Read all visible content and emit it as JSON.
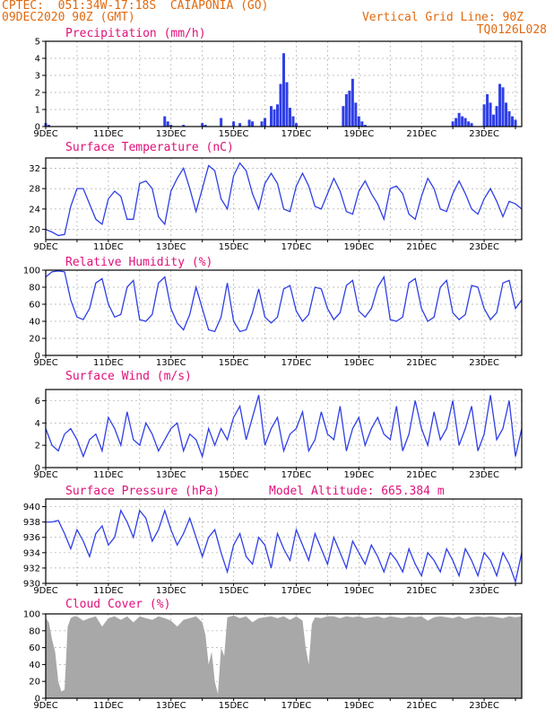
{
  "header": {
    "line1_left": "CPTEC:  051:34W-17:18S  CAIAPONIA (GO)",
    "line2_left": "09DEC2020 90Z (GMT)",
    "line2_right": "Vertical Grid Line: 90Z",
    "line3_right": "TQ0126L028"
  },
  "colors": {
    "series_blue": "#2f3fe6",
    "title_pink": "#e0107a",
    "header_orange": "#e06a10",
    "cloud_gray": "#a8a8a8"
  },
  "x_tick_labels": [
    "9DEC",
    "11DEC",
    "13DEC",
    "15DEC",
    "17DEC",
    "19DEC",
    "21DEC",
    "23DEC"
  ],
  "chart_data": [
    {
      "type": "bar",
      "title": "Precipitation (mm/h)",
      "ylim": [
        0,
        5
      ],
      "yticks": [
        0,
        1,
        2,
        3,
        4,
        5
      ],
      "x_range_days": [
        9,
        24.2
      ],
      "x": [
        9.0,
        9.1,
        12.8,
        12.9,
        13.0,
        13.4,
        14.0,
        14.1,
        14.6,
        15.0,
        15.2,
        15.5,
        15.6,
        15.9,
        16.0,
        16.2,
        16.3,
        16.4,
        16.5,
        16.6,
        16.7,
        16.8,
        16.9,
        17.0,
        18.5,
        18.6,
        18.7,
        18.8,
        18.9,
        19.0,
        19.1,
        19.2,
        22.0,
        22.1,
        22.2,
        22.3,
        22.4,
        22.5,
        22.6,
        23.0,
        23.1,
        23.2,
        23.3,
        23.4,
        23.5,
        23.6,
        23.7,
        23.8,
        23.9,
        24.0
      ],
      "values": [
        0.2,
        0.1,
        0.6,
        0.3,
        0.1,
        0.1,
        0.2,
        0.1,
        0.5,
        0.3,
        0.2,
        0.4,
        0.3,
        0.3,
        0.5,
        1.2,
        1.0,
        1.3,
        2.5,
        4.3,
        2.6,
        1.1,
        0.6,
        0.2,
        1.2,
        1.9,
        2.1,
        2.8,
        1.4,
        0.6,
        0.3,
        0.1,
        0.3,
        0.5,
        0.8,
        0.6,
        0.5,
        0.3,
        0.2,
        1.3,
        1.9,
        1.4,
        0.7,
        1.2,
        2.5,
        2.3,
        1.4,
        0.9,
        0.6,
        0.4
      ]
    },
    {
      "type": "line",
      "title": "Surface Temperature (nC)",
      "ylim": [
        18,
        34
      ],
      "yticks": [
        20,
        24,
        28,
        32
      ],
      "x": [
        9.0,
        9.2,
        9.4,
        9.6,
        9.8,
        10.0,
        10.2,
        10.4,
        10.6,
        10.8,
        11.0,
        11.2,
        11.4,
        11.6,
        11.8,
        12.0,
        12.2,
        12.4,
        12.6,
        12.8,
        13.0,
        13.2,
        13.4,
        13.6,
        13.8,
        14.0,
        14.2,
        14.4,
        14.6,
        14.8,
        15.0,
        15.2,
        15.4,
        15.6,
        15.8,
        16.0,
        16.2,
        16.4,
        16.6,
        16.8,
        17.0,
        17.2,
        17.4,
        17.6,
        17.8,
        18.0,
        18.2,
        18.4,
        18.6,
        18.8,
        19.0,
        19.2,
        19.4,
        19.6,
        19.8,
        20.0,
        20.2,
        20.4,
        20.6,
        20.8,
        21.0,
        21.2,
        21.4,
        21.6,
        21.8,
        22.0,
        22.2,
        22.4,
        22.6,
        22.8,
        23.0,
        23.2,
        23.4,
        23.6,
        23.8,
        24.0,
        24.2
      ],
      "values": [
        20,
        19.5,
        18.8,
        19.0,
        24.5,
        28.0,
        28.0,
        25.0,
        22.0,
        21.0,
        26.0,
        27.5,
        26.5,
        22.0,
        22.0,
        29.0,
        29.5,
        28.0,
        22.5,
        21.0,
        27.5,
        30.0,
        32.0,
        28.0,
        23.5,
        28.0,
        32.5,
        31.5,
        26.0,
        24.0,
        30.5,
        33.0,
        31.5,
        27.0,
        24.0,
        29.0,
        31.0,
        29.0,
        24.0,
        23.5,
        28.5,
        31.0,
        28.5,
        24.5,
        24.0,
        27.0,
        30.0,
        27.5,
        23.5,
        23.0,
        27.5,
        29.5,
        27.0,
        25.0,
        22.0,
        28.0,
        28.5,
        27.0,
        23.0,
        22.0,
        26.5,
        30.0,
        28.0,
        24.0,
        23.5,
        27.0,
        29.5,
        27.0,
        24.0,
        23.0,
        26.0,
        28.0,
        25.5,
        22.5,
        25.5,
        25.0,
        24.0
      ]
    },
    {
      "type": "line",
      "title": "Relative Humidity (%)",
      "ylim": [
        0,
        100
      ],
      "yticks": [
        0,
        20,
        40,
        60,
        80,
        100
      ],
      "x": [
        9.0,
        9.2,
        9.4,
        9.6,
        9.8,
        10.0,
        10.2,
        10.4,
        10.6,
        10.8,
        11.0,
        11.2,
        11.4,
        11.6,
        11.8,
        12.0,
        12.2,
        12.4,
        12.6,
        12.8,
        13.0,
        13.2,
        13.4,
        13.6,
        13.8,
        14.0,
        14.2,
        14.4,
        14.6,
        14.8,
        15.0,
        15.2,
        15.4,
        15.6,
        15.8,
        16.0,
        16.2,
        16.4,
        16.6,
        16.8,
        17.0,
        17.2,
        17.4,
        17.6,
        17.8,
        18.0,
        18.2,
        18.4,
        18.6,
        18.8,
        19.0,
        19.2,
        19.4,
        19.6,
        19.8,
        20.0,
        20.2,
        20.4,
        20.6,
        20.8,
        21.0,
        21.2,
        21.4,
        21.6,
        21.8,
        22.0,
        22.2,
        22.4,
        22.6,
        22.8,
        23.0,
        23.2,
        23.4,
        23.6,
        23.8,
        24.0,
        24.2
      ],
      "values": [
        92,
        98,
        99,
        98,
        65,
        45,
        42,
        55,
        85,
        90,
        60,
        45,
        48,
        80,
        88,
        42,
        40,
        48,
        85,
        92,
        55,
        38,
        30,
        48,
        80,
        55,
        30,
        28,
        45,
        85,
        40,
        28,
        30,
        50,
        78,
        45,
        38,
        45,
        78,
        82,
        52,
        40,
        48,
        80,
        78,
        55,
        42,
        50,
        82,
        88,
        52,
        45,
        55,
        80,
        92,
        42,
        40,
        45,
        85,
        90,
        55,
        40,
        45,
        80,
        88,
        50,
        42,
        48,
        82,
        80,
        55,
        42,
        50,
        85,
        88,
        55,
        65
      ]
    },
    {
      "type": "line",
      "title": "Surface Wind (m/s)",
      "ylim": [
        0,
        7
      ],
      "yticks": [
        0,
        2,
        4,
        6
      ],
      "x": [
        9.0,
        9.2,
        9.4,
        9.6,
        9.8,
        10.0,
        10.2,
        10.4,
        10.6,
        10.8,
        11.0,
        11.2,
        11.4,
        11.6,
        11.8,
        12.0,
        12.2,
        12.4,
        12.6,
        12.8,
        13.0,
        13.2,
        13.4,
        13.6,
        13.8,
        14.0,
        14.2,
        14.4,
        14.6,
        14.8,
        15.0,
        15.2,
        15.4,
        15.6,
        15.8,
        16.0,
        16.2,
        16.4,
        16.6,
        16.8,
        17.0,
        17.2,
        17.4,
        17.6,
        17.8,
        18.0,
        18.2,
        18.4,
        18.6,
        18.8,
        19.0,
        19.2,
        19.4,
        19.6,
        19.8,
        20.0,
        20.2,
        20.4,
        20.6,
        20.8,
        21.0,
        21.2,
        21.4,
        21.6,
        21.8,
        22.0,
        22.2,
        22.4,
        22.6,
        22.8,
        23.0,
        23.2,
        23.4,
        23.6,
        23.8,
        24.0,
        24.2
      ],
      "values": [
        3.5,
        2.0,
        1.5,
        3.0,
        3.5,
        2.5,
        1.0,
        2.5,
        3.0,
        1.5,
        4.5,
        3.5,
        2.0,
        5.0,
        2.5,
        2.0,
        4.0,
        3.0,
        1.5,
        2.5,
        3.5,
        4.0,
        1.5,
        3.0,
        2.5,
        1.0,
        3.5,
        2.0,
        3.5,
        2.5,
        4.5,
        5.5,
        2.5,
        4.5,
        6.5,
        2.0,
        3.5,
        4.5,
        1.5,
        3.0,
        3.5,
        5.0,
        1.5,
        2.5,
        5.0,
        3.0,
        2.5,
        5.5,
        1.5,
        3.5,
        4.5,
        2.0,
        3.5,
        4.5,
        3.0,
        2.5,
        5.5,
        1.5,
        3.0,
        6.0,
        3.5,
        2.0,
        5.0,
        2.5,
        3.5,
        6.0,
        2.0,
        3.5,
        5.5,
        1.5,
        3.0,
        6.5,
        2.5,
        3.5,
        6.0,
        1.0,
        3.5
      ]
    },
    {
      "type": "line",
      "title": "Surface Pressure (hPa)",
      "annotation": "Model Altitude: 665.384 m",
      "ylim": [
        930,
        941
      ],
      "yticks": [
        930,
        932,
        934,
        936,
        938,
        940
      ],
      "x": [
        9.0,
        9.2,
        9.4,
        9.6,
        9.8,
        10.0,
        10.2,
        10.4,
        10.6,
        10.8,
        11.0,
        11.2,
        11.4,
        11.6,
        11.8,
        12.0,
        12.2,
        12.4,
        12.6,
        12.8,
        13.0,
        13.2,
        13.4,
        13.6,
        13.8,
        14.0,
        14.2,
        14.4,
        14.6,
        14.8,
        15.0,
        15.2,
        15.4,
        15.6,
        15.8,
        16.0,
        16.2,
        16.4,
        16.6,
        16.8,
        17.0,
        17.2,
        17.4,
        17.6,
        17.8,
        18.0,
        18.2,
        18.4,
        18.6,
        18.8,
        19.0,
        19.2,
        19.4,
        19.6,
        19.8,
        20.0,
        20.2,
        20.4,
        20.6,
        20.8,
        21.0,
        21.2,
        21.4,
        21.6,
        21.8,
        22.0,
        22.2,
        22.4,
        22.6,
        22.8,
        23.0,
        23.2,
        23.4,
        23.6,
        23.8,
        24.0,
        24.2
      ],
      "values": [
        938.0,
        938.0,
        938.2,
        936.5,
        934.5,
        937.0,
        935.5,
        933.5,
        936.5,
        937.5,
        935.0,
        936.0,
        939.5,
        938.0,
        936.0,
        939.5,
        938.5,
        935.5,
        937.0,
        939.5,
        937.0,
        935.0,
        936.5,
        938.5,
        936.0,
        933.5,
        936.0,
        937.0,
        934.0,
        931.5,
        935.0,
        936.5,
        933.5,
        932.5,
        936.0,
        935.0,
        932.0,
        936.5,
        934.5,
        933.0,
        937.0,
        935.0,
        933.0,
        936.5,
        934.5,
        932.5,
        936.0,
        934.0,
        932.0,
        935.5,
        934.0,
        932.5,
        935.0,
        933.5,
        931.5,
        934.0,
        933.0,
        931.5,
        934.5,
        932.5,
        931.0,
        934.0,
        933.0,
        931.5,
        934.5,
        933.0,
        931.0,
        934.5,
        933.0,
        931.0,
        934.0,
        933.0,
        931.0,
        934.0,
        932.5,
        930.2,
        934.0
      ]
    },
    {
      "type": "area",
      "title": "Cloud Cover (%)",
      "ylim": [
        0,
        100
      ],
      "yticks": [
        0,
        20,
        40,
        60,
        80,
        100
      ],
      "x": [
        9.0,
        9.1,
        9.2,
        9.3,
        9.4,
        9.5,
        9.6,
        9.7,
        9.8,
        9.9,
        10.0,
        10.2,
        10.4,
        10.6,
        10.8,
        11.0,
        11.2,
        11.4,
        11.6,
        11.8,
        12.0,
        12.2,
        12.4,
        12.6,
        12.8,
        13.0,
        13.2,
        13.4,
        13.6,
        13.8,
        14.0,
        14.1,
        14.2,
        14.3,
        14.4,
        14.5,
        14.6,
        14.7,
        14.8,
        15.0,
        15.2,
        15.4,
        15.6,
        15.8,
        16.0,
        16.2,
        16.4,
        16.6,
        16.8,
        17.0,
        17.2,
        17.3,
        17.4,
        17.5,
        17.6,
        17.8,
        18.0,
        18.2,
        18.4,
        18.6,
        18.8,
        19.0,
        19.2,
        19.4,
        19.6,
        19.8,
        20.0,
        20.2,
        20.4,
        20.6,
        20.8,
        21.0,
        21.2,
        21.4,
        21.6,
        21.8,
        22.0,
        22.2,
        22.4,
        22.6,
        22.8,
        23.0,
        23.2,
        23.4,
        23.6,
        23.8,
        24.0,
        24.2
      ],
      "values": [
        95,
        90,
        70,
        55,
        20,
        8,
        10,
        85,
        95,
        97,
        97,
        92,
        95,
        97,
        85,
        95,
        97,
        93,
        97,
        90,
        97,
        95,
        93,
        97,
        95,
        92,
        85,
        93,
        95,
        97,
        90,
        75,
        40,
        55,
        20,
        5,
        60,
        50,
        96,
        98,
        95,
        97,
        90,
        95,
        96,
        97,
        95,
        97,
        93,
        97,
        92,
        60,
        40,
        88,
        96,
        95,
        97,
        97,
        95,
        97,
        96,
        97,
        95,
        96,
        97,
        95,
        97,
        96,
        95,
        97,
        96,
        97,
        92,
        96,
        97,
        96,
        95,
        97,
        94,
        96,
        97,
        96,
        97,
        96,
        95,
        97,
        96,
        97
      ]
    }
  ]
}
